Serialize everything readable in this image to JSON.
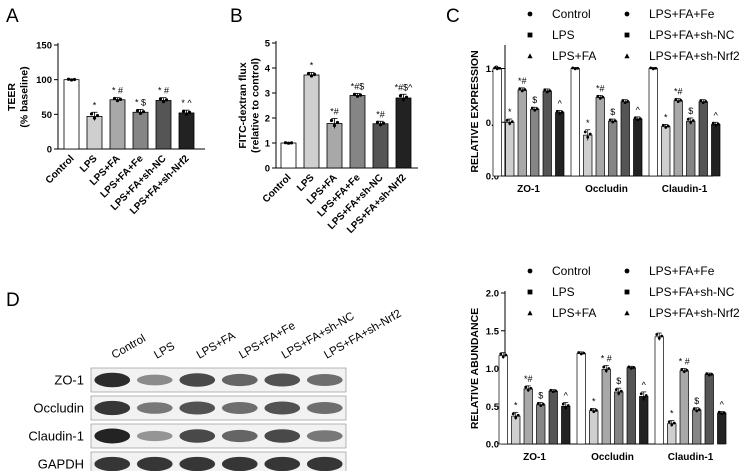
{
  "panel_letters": [
    "A",
    "B",
    "C",
    "D"
  ],
  "colors": {
    "Control": "#ffffff",
    "LPS": "#cfcfcf",
    "LPS+FA": "#a8a8a8",
    "LPS+FA+Fe": "#858585",
    "LPS+FA+sh-NC": "#555555",
    "LPS+FA+sh-Nrf2": "#222222"
  },
  "chart_data": [
    {
      "id": "A",
      "type": "bar",
      "ylabel": [
        "TEER",
        "(% baseline)"
      ],
      "ylim": [
        0,
        150
      ],
      "yticks": [
        0,
        50,
        100,
        150
      ],
      "categories": [
        "Control",
        "LPS",
        "LPS+FA",
        "LPS+FA+Fe",
        "LPS+FA+sh-NC",
        "LPS+FA+sh-Nrf2"
      ],
      "values": [
        100,
        47,
        71,
        53,
        70,
        52
      ],
      "errors": [
        1,
        6,
        3,
        4,
        4,
        4
      ],
      "annotations": [
        "",
        "*",
        "* #",
        "* $",
        "* #",
        "* ^"
      ]
    },
    {
      "id": "B",
      "type": "bar",
      "ylabel": [
        "FITC-dextran flux",
        "(relative to control)"
      ],
      "ylim": [
        0,
        5
      ],
      "yticks": [
        0,
        1,
        2,
        3,
        4,
        5
      ],
      "categories": [
        "Control",
        "LPS",
        "LPS+FA",
        "LPS+FA+Fe",
        "LPS+FA+sh-NC",
        "LPS+FA+sh-Nrf2"
      ],
      "values": [
        1.0,
        3.72,
        1.78,
        2.9,
        1.77,
        2.8
      ],
      "errors": [
        0.02,
        0.1,
        0.2,
        0.08,
        0.1,
        0.15
      ],
      "annotations": [
        "",
        "*",
        "*#",
        "*#$",
        "*#",
        "*#$^"
      ]
    },
    {
      "id": "C",
      "type": "bar",
      "ylabel": "RELATIVE EXPRESSION",
      "ylim": [
        0,
        1.2
      ],
      "yticks": [
        0,
        0.5,
        1.0
      ],
      "ytick_labels": [
        "0.0",
        "0.5",
        "1.0"
      ],
      "groups": [
        "ZO-1",
        "Occludin",
        "Claudin-1"
      ],
      "legend": [
        "Control",
        "LPS+FA+Fe",
        "LPS",
        "LPS+FA+sh-NC",
        "LPS+FA",
        "LPS+FA+sh-Nrf2"
      ],
      "series": [
        {
          "name": "Control",
          "values": [
            1.0,
            1.0,
            1.0
          ],
          "errors": [
            0.01,
            0.01,
            0.01
          ]
        },
        {
          "name": "LPS",
          "values": [
            0.5,
            0.38,
            0.46
          ],
          "errors": [
            0.03,
            0.05,
            0.02
          ]
        },
        {
          "name": "LPS+FA",
          "values": [
            0.8,
            0.73,
            0.7
          ],
          "errors": [
            0.02,
            0.02,
            0.02
          ]
        },
        {
          "name": "LPS+FA+Fe",
          "values": [
            0.62,
            0.51,
            0.51
          ],
          "errors": [
            0.02,
            0.02,
            0.03
          ]
        },
        {
          "name": "LPS+FA+sh-NC",
          "values": [
            0.79,
            0.69,
            0.69
          ],
          "errors": [
            0.02,
            0.02,
            0.02
          ]
        },
        {
          "name": "LPS+FA+sh-Nrf2",
          "values": [
            0.59,
            0.53,
            0.48
          ],
          "errors": [
            0.02,
            0.02,
            0.02
          ]
        }
      ],
      "annotations": [
        [
          "",
          "*",
          "*#",
          "$",
          "",
          "^"
        ],
        [
          "",
          "*",
          "*#",
          "$",
          "",
          "^"
        ],
        [
          "",
          "*",
          "*#",
          "$",
          "",
          "^"
        ]
      ]
    },
    {
      "id": "D",
      "type": "bar",
      "ylabel": "RELATIVE ABUNDANCE",
      "ylim": [
        0,
        2.0
      ],
      "yticks": [
        0,
        0.5,
        1.0,
        1.5,
        2.0
      ],
      "ytick_labels": [
        "0.0",
        "0.5",
        "1.0",
        "1.5",
        "2.0"
      ],
      "groups": [
        "ZO-1",
        "Occludin",
        "Claudin-1"
      ],
      "legend": [
        "Control",
        "LPS+FA+Fe",
        "LPS",
        "LPS+FA+sh-NC",
        "LPS+FA",
        "LPS+FA+sh-Nrf2"
      ],
      "series": [
        {
          "name": "Control",
          "values": [
            1.17,
            1.2,
            1.42
          ],
          "errors": [
            0.04,
            0.02,
            0.05
          ]
        },
        {
          "name": "LPS",
          "values": [
            0.37,
            0.44,
            0.27
          ],
          "errors": [
            0.05,
            0.03,
            0.04
          ]
        },
        {
          "name": "LPS+FA",
          "values": [
            0.73,
            0.99,
            0.97
          ],
          "errors": [
            0.04,
            0.05,
            0.03
          ]
        },
        {
          "name": "LPS+FA+Fe",
          "values": [
            0.52,
            0.69,
            0.45
          ],
          "errors": [
            0.03,
            0.05,
            0.03
          ]
        },
        {
          "name": "LPS+FA+sh-NC",
          "values": [
            0.7,
            1.01,
            0.92
          ],
          "errors": [
            0.02,
            0.02,
            0.02
          ]
        },
        {
          "name": "LPS+FA+sh-Nrf2",
          "values": [
            0.5,
            0.63,
            0.41
          ],
          "errors": [
            0.05,
            0.06,
            0.02
          ]
        }
      ],
      "annotations": [
        [
          "",
          "*",
          "*#",
          "$",
          "",
          "^"
        ],
        [
          "",
          "*",
          "* #",
          "$",
          "",
          "^"
        ],
        [
          "",
          "*",
          "* #",
          "$",
          "",
          "^"
        ]
      ]
    }
  ],
  "western_blot": {
    "columns": [
      "Control",
      "LPS",
      "LPS+FA",
      "LPS+FA+Fe",
      "LPS+FA+sh-NC",
      "LPS+FA+sh-Nrf2"
    ],
    "rows": [
      {
        "label": "ZO-1",
        "intensities": [
          0.9,
          0.4,
          0.75,
          0.6,
          0.7,
          0.55
        ]
      },
      {
        "label": "Occludin",
        "intensities": [
          0.85,
          0.5,
          0.7,
          0.55,
          0.7,
          0.55
        ]
      },
      {
        "label": "Claudin-1",
        "intensities": [
          0.95,
          0.35,
          0.75,
          0.6,
          0.75,
          0.5
        ]
      },
      {
        "label": "GAPDH",
        "intensities": [
          0.85,
          0.85,
          0.85,
          0.85,
          0.85,
          0.85
        ]
      }
    ]
  }
}
